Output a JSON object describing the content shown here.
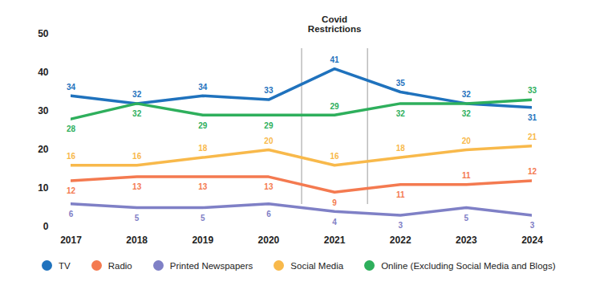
{
  "chart_data": {
    "type": "line",
    "x": [
      2017,
      2018,
      2019,
      2020,
      2021,
      2022,
      2023,
      2024
    ],
    "xlim": [
      2017,
      2024
    ],
    "xticks": [
      2017,
      2018,
      2019,
      2020,
      2021,
      2022,
      2023,
      2024
    ],
    "ylim": [
      0,
      50
    ],
    "yticks": [
      0,
      10,
      20,
      30,
      40,
      50
    ],
    "grid": false,
    "data_labels": true,
    "legend": "bottom",
    "annotations": [
      {
        "text": "Covid Restrictions",
        "x_start": 2020.5,
        "x_end": 2021.5
      }
    ],
    "series": [
      {
        "name": "TV",
        "color": "#1f72bd",
        "values": [
          34,
          32,
          34,
          33,
          41,
          35,
          32,
          31
        ]
      },
      {
        "name": "Radio",
        "color": "#f47a50",
        "values": [
          12,
          13,
          13,
          13,
          9,
          11,
          11,
          12
        ]
      },
      {
        "name": "Printed Newspapers",
        "color": "#7f80c6",
        "values": [
          6,
          5,
          5,
          6,
          4,
          3,
          5,
          3
        ]
      },
      {
        "name": "Social Media",
        "color": "#f8b94b",
        "values": [
          16,
          16,
          18,
          20,
          16,
          18,
          20,
          21
        ]
      },
      {
        "name": "Online (Excluding Social Media and Blogs)",
        "color": "#2eaf5c",
        "values": [
          28,
          32,
          29,
          29,
          29,
          32,
          32,
          33
        ]
      }
    ]
  }
}
